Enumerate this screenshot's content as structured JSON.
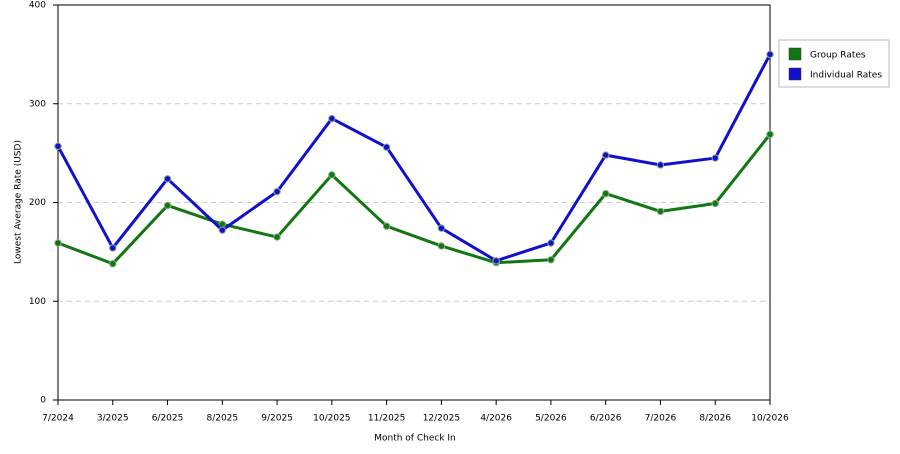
{
  "chart_data": {
    "type": "line",
    "x_label": "Month of Check In",
    "y_label": "Lowest Average Rate (USD)",
    "categories": [
      "7/2024",
      "3/2025",
      "6/2025",
      "8/2025",
      "9/2025",
      "10/2025",
      "11/2025",
      "12/2025",
      "4/2026",
      "5/2026",
      "6/2026",
      "7/2026",
      "8/2026",
      "10/2026"
    ],
    "series": [
      {
        "name": "Group Rates",
        "color": "#117711",
        "values": [
          159,
          138,
          197,
          178,
          165,
          228,
          176,
          156,
          139,
          142,
          209,
          191,
          199,
          269
        ]
      },
      {
        "name": "Individual Rates",
        "color": "#1111cc",
        "values": [
          257,
          154,
          224,
          172,
          211,
          285,
          256,
          174,
          141,
          159,
          248,
          238,
          245,
          350
        ]
      }
    ],
    "ylim": [
      0,
      400
    ],
    "yticks": [
      0,
      100,
      200,
      300,
      400
    ],
    "grid": true,
    "legend": "right"
  }
}
